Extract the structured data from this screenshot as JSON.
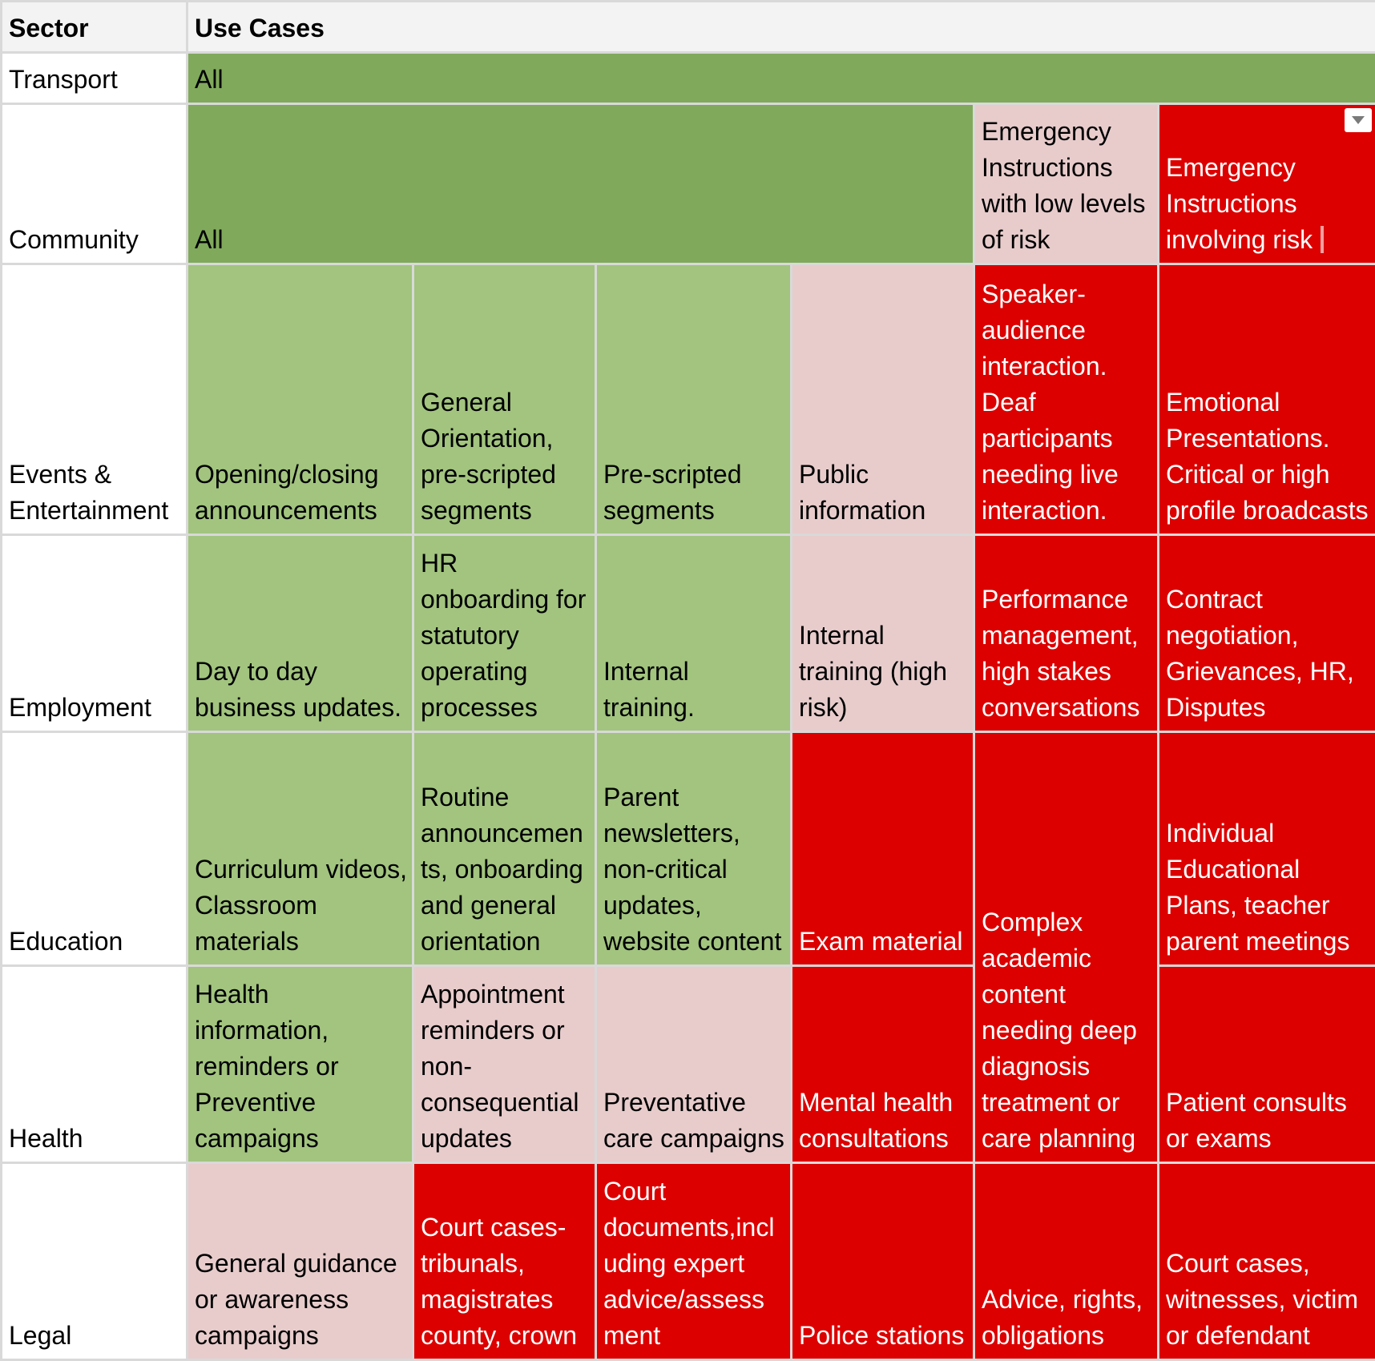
{
  "header": {
    "sector": "Sector",
    "use_cases": "Use Cases"
  },
  "rows": {
    "transport": {
      "sector": "Transport",
      "all": "All"
    },
    "community": {
      "sector": "Community",
      "all": "All",
      "emergency_low": "Emergency Instructions with low levels of risk",
      "emergency_risk": "Emergency Instructions involving risk"
    },
    "events": {
      "sector": "Events & Entertainment",
      "cells": [
        "Opening/closing announcements",
        "General Orientation, pre-scripted segments",
        "Pre-scripted segments",
        "Public information",
        "Speaker-audience interaction. Deaf participants needing live interaction.",
        "Emotional Presentations. Critical or high profile broadcasts"
      ]
    },
    "employment": {
      "sector": "Employment",
      "cells": [
        "Day to day business updates.",
        "HR onboarding for statutory operating processes",
        "Internal training.",
        "Internal training (high risk)",
        "Performance management, high stakes conversations",
        "Contract negotiation, Grievances, HR, Disputes"
      ]
    },
    "education": {
      "sector": "Education",
      "cells": [
        "Curriculum videos, Classroom materials",
        "Routine announcements, onboarding and general orientation",
        "Parent newsletters, non-critical updates, website content",
        "Exam material",
        "Complex academic content needing deep diagnosis treatment or care planning",
        "Individual Educational Plans, teacher parent meetings"
      ]
    },
    "health": {
      "sector": "Health",
      "cells": [
        "Health information, reminders or Preventive campaigns",
        "Appointment reminders or non-consequential updates",
        "Preventative care campaigns",
        "Mental health consultations",
        "Patient consults or exams"
      ]
    },
    "legal": {
      "sector": "Legal",
      "cells": [
        "General guidance or awareness campaigns",
        "Court cases- tribunals, magistrates county, crown",
        "Court documents,including expert advice/assessment",
        "Police stations",
        "Advice, rights, obligations",
        "Court cases, witnesses, victim or defendant"
      ]
    }
  },
  "colors": {
    "header_bg": "#f3f3f3",
    "green_dark": "#80a95c",
    "green_light": "#a2c47f",
    "pink": "#e8cccc",
    "red": "#dc0000",
    "gridline": "#d9d9d9"
  },
  "icons": {
    "filter_dropdown": "dropdown-arrow-icon"
  }
}
